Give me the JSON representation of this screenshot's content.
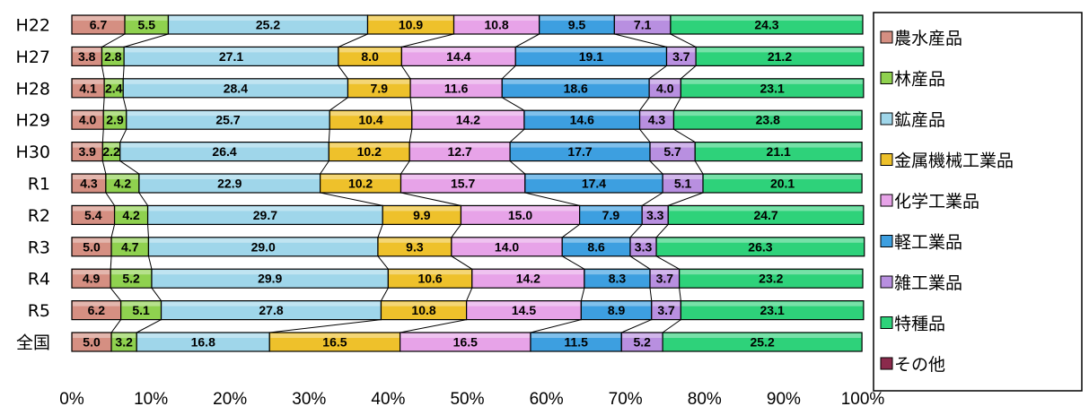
{
  "chart_data": {
    "type": "bar",
    "stacked": true,
    "orientation": "horizontal",
    "percent": true,
    "categories": [
      "H22",
      "H27",
      "H28",
      "H29",
      "H30",
      "R1",
      "R2",
      "R3",
      "R4",
      "R5",
      "全国"
    ],
    "series": [
      {
        "name": "農水産品",
        "color": "#d58f82",
        "values": [
          6.7,
          3.8,
          4.1,
          4.0,
          3.9,
          4.3,
          5.4,
          5.0,
          4.9,
          6.2,
          5.0
        ]
      },
      {
        "name": "林産品",
        "color": "#8fd14f",
        "values": [
          5.5,
          2.8,
          2.4,
          2.9,
          2.2,
          4.2,
          4.2,
          4.7,
          5.2,
          5.1,
          3.2
        ]
      },
      {
        "name": "鉱産品",
        "color": "#9fd6ea",
        "values": [
          25.2,
          27.1,
          28.4,
          25.7,
          26.4,
          22.9,
          29.7,
          29.0,
          29.9,
          27.8,
          16.8
        ]
      },
      {
        "name": "金属機械工業品",
        "color": "#eec12b",
        "values": [
          10.9,
          8.0,
          7.9,
          10.4,
          10.2,
          10.2,
          9.9,
          9.3,
          10.6,
          10.8,
          16.5
        ]
      },
      {
        "name": "化学工業品",
        "color": "#e7a3e8",
        "values": [
          10.8,
          14.4,
          11.6,
          14.2,
          12.7,
          15.7,
          15.0,
          14.0,
          14.2,
          14.5,
          16.5
        ]
      },
      {
        "name": "軽工業品",
        "color": "#3d9fe0",
        "values": [
          9.5,
          19.1,
          18.6,
          14.6,
          17.7,
          17.4,
          7.9,
          8.6,
          8.3,
          8.9,
          11.5
        ]
      },
      {
        "name": "雑工業品",
        "color": "#b88fe0",
        "values": [
          7.1,
          3.7,
          4.0,
          4.3,
          5.7,
          5.1,
          3.3,
          3.3,
          3.7,
          3.7,
          5.2
        ]
      },
      {
        "name": "特種品",
        "color": "#2ed27a",
        "values": [
          24.3,
          21.2,
          23.1,
          23.8,
          21.1,
          20.1,
          24.7,
          26.3,
          23.2,
          23.1,
          25.2
        ]
      },
      {
        "name": "その他",
        "color": "#8b2a4c",
        "values": [
          0,
          0,
          0,
          0,
          0,
          0,
          0,
          0,
          0,
          0,
          0
        ]
      }
    ],
    "xticks": [
      "0%",
      "10%",
      "20%",
      "30%",
      "40%",
      "50%",
      "60%",
      "70%",
      "80%",
      "90%",
      "100%"
    ],
    "xlim": [
      0,
      100
    ],
    "legend": "right",
    "series_lines": true,
    "grid": false
  }
}
